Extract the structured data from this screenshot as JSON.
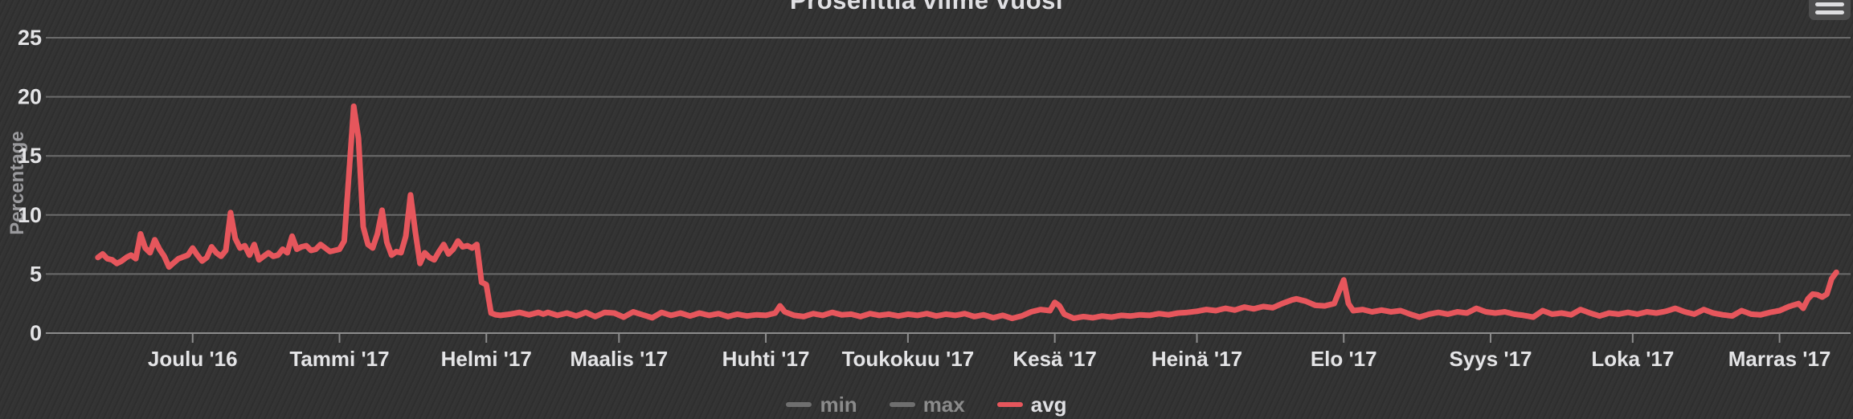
{
  "chart": {
    "title": "Prosenttia viime vuosi",
    "background_color": "#333333",
    "grid_color": "#6b6b6b",
    "axis_line_color": "#8c8c8c",
    "axis_label_color": "#e4e4e6",
    "y_title_color": "#9a9a9d",
    "series_color": "#e6565c",
    "muted_legend_color": "#6f6f6f"
  },
  "menu": {
    "icon": "hamburger-menu-icon"
  },
  "legend": {
    "items": [
      {
        "label": "min",
        "color": "#6f6f6f",
        "active": false
      },
      {
        "label": "max",
        "color": "#6f6f6f",
        "active": false
      },
      {
        "label": "avg",
        "color": "#e6565c",
        "active": true
      }
    ]
  },
  "chart_data": {
    "type": "line",
    "title": "Prosenttia viime vuosi",
    "xlabel": "",
    "ylabel": "Percentage",
    "ylim": [
      0,
      25
    ],
    "yticks": [
      0,
      5,
      10,
      15,
      20,
      25
    ],
    "grid": true,
    "legend_position": "bottom",
    "x_type": "datetime",
    "x_range": [
      "2016-10-31",
      "2017-11-16"
    ],
    "xticks": [
      {
        "date": "2016-12-01",
        "label": "Joulu '16"
      },
      {
        "date": "2017-01-01",
        "label": "Tammi '17"
      },
      {
        "date": "2017-02-01",
        "label": "Helmi '17"
      },
      {
        "date": "2017-03-01",
        "label": "Maalis '17"
      },
      {
        "date": "2017-04-01",
        "label": "Huhti '17"
      },
      {
        "date": "2017-05-01",
        "label": "Toukokuu '17"
      },
      {
        "date": "2017-06-01",
        "label": "Kesä '17"
      },
      {
        "date": "2017-07-01",
        "label": "Heinä '17"
      },
      {
        "date": "2017-08-01",
        "label": "Elo '17"
      },
      {
        "date": "2017-09-01",
        "label": "Syys '17"
      },
      {
        "date": "2017-10-01",
        "label": "Loka '17"
      },
      {
        "date": "2017-11-01",
        "label": "Marras '17"
      }
    ],
    "series": [
      {
        "name": "min",
        "visible": false,
        "points": []
      },
      {
        "name": "max",
        "visible": false,
        "points": []
      },
      {
        "name": "avg",
        "visible": true,
        "points": [
          [
            "2016-11-11",
            6.4
          ],
          [
            "2016-11-12",
            6.7
          ],
          [
            "2016-11-13",
            6.3
          ],
          [
            "2016-11-14",
            6.2
          ],
          [
            "2016-11-15",
            5.9
          ],
          [
            "2016-11-16",
            6.1
          ],
          [
            "2016-11-17",
            6.4
          ],
          [
            "2016-11-18",
            6.6
          ],
          [
            "2016-11-19",
            6.3
          ],
          [
            "2016-11-20",
            8.4
          ],
          [
            "2016-11-21",
            7.2
          ],
          [
            "2016-11-22",
            6.8
          ],
          [
            "2016-11-23",
            7.9
          ],
          [
            "2016-11-24",
            7.1
          ],
          [
            "2016-11-25",
            6.5
          ],
          [
            "2016-11-26",
            5.6
          ],
          [
            "2016-11-28",
            6.3
          ],
          [
            "2016-11-30",
            6.6
          ],
          [
            "2016-12-01",
            7.2
          ],
          [
            "2016-12-02",
            6.6
          ],
          [
            "2016-12-03",
            6.1
          ],
          [
            "2016-12-04",
            6.4
          ],
          [
            "2016-12-05",
            7.3
          ],
          [
            "2016-12-06",
            6.8
          ],
          [
            "2016-12-07",
            6.5
          ],
          [
            "2016-12-08",
            7.0
          ],
          [
            "2016-12-09",
            10.2
          ],
          [
            "2016-12-10",
            8.0
          ],
          [
            "2016-12-11",
            7.2
          ],
          [
            "2016-12-12",
            7.4
          ],
          [
            "2016-12-13",
            6.6
          ],
          [
            "2016-12-14",
            7.5
          ],
          [
            "2016-12-15",
            6.2
          ],
          [
            "2016-12-16",
            6.5
          ],
          [
            "2016-12-17",
            6.8
          ],
          [
            "2016-12-18",
            6.5
          ],
          [
            "2016-12-19",
            6.6
          ],
          [
            "2016-12-20",
            7.1
          ],
          [
            "2016-12-21",
            6.8
          ],
          [
            "2016-12-22",
            8.2
          ],
          [
            "2016-12-23",
            7.1
          ],
          [
            "2016-12-24",
            7.3
          ],
          [
            "2016-12-25",
            7.4
          ],
          [
            "2016-12-26",
            7.0
          ],
          [
            "2016-12-27",
            7.1
          ],
          [
            "2016-12-28",
            7.5
          ],
          [
            "2016-12-29",
            7.2
          ],
          [
            "2016-12-30",
            6.9
          ],
          [
            "2016-12-31",
            7.0
          ],
          [
            "2017-01-01",
            7.1
          ],
          [
            "2017-01-02",
            7.8
          ],
          [
            "2017-01-03",
            13.5
          ],
          [
            "2017-01-04",
            19.2
          ],
          [
            "2017-01-05",
            16.5
          ],
          [
            "2017-01-06",
            9.0
          ],
          [
            "2017-01-07",
            7.5
          ],
          [
            "2017-01-08",
            7.2
          ],
          [
            "2017-01-09",
            8.4
          ],
          [
            "2017-01-10",
            10.4
          ],
          [
            "2017-01-11",
            7.7
          ],
          [
            "2017-01-12",
            6.6
          ],
          [
            "2017-01-13",
            6.9
          ],
          [
            "2017-01-14",
            6.8
          ],
          [
            "2017-01-15",
            8.2
          ],
          [
            "2017-01-16",
            11.7
          ],
          [
            "2017-01-17",
            8.6
          ],
          [
            "2017-01-18",
            5.9
          ],
          [
            "2017-01-19",
            6.8
          ],
          [
            "2017-01-20",
            6.4
          ],
          [
            "2017-01-21",
            6.2
          ],
          [
            "2017-01-22",
            6.9
          ],
          [
            "2017-01-23",
            7.5
          ],
          [
            "2017-01-24",
            6.7
          ],
          [
            "2017-01-25",
            7.1
          ],
          [
            "2017-01-26",
            7.8
          ],
          [
            "2017-01-27",
            7.3
          ],
          [
            "2017-01-28",
            7.4
          ],
          [
            "2017-01-29",
            7.2
          ],
          [
            "2017-01-30",
            7.5
          ],
          [
            "2017-01-31",
            4.3
          ],
          [
            "2017-02-01",
            4.1
          ],
          [
            "2017-02-02",
            1.7
          ],
          [
            "2017-02-03",
            1.55
          ],
          [
            "2017-02-04",
            1.5
          ],
          [
            "2017-02-06",
            1.6
          ],
          [
            "2017-02-08",
            1.75
          ],
          [
            "2017-02-10",
            1.55
          ],
          [
            "2017-02-12",
            1.75
          ],
          [
            "2017-02-13",
            1.6
          ],
          [
            "2017-02-14",
            1.75
          ],
          [
            "2017-02-16",
            1.5
          ],
          [
            "2017-02-18",
            1.7
          ],
          [
            "2017-02-20",
            1.45
          ],
          [
            "2017-02-22",
            1.75
          ],
          [
            "2017-02-24",
            1.4
          ],
          [
            "2017-02-26",
            1.75
          ],
          [
            "2017-02-28",
            1.7
          ],
          [
            "2017-03-02",
            1.35
          ],
          [
            "2017-03-04",
            1.8
          ],
          [
            "2017-03-06",
            1.55
          ],
          [
            "2017-03-08",
            1.3
          ],
          [
            "2017-03-10",
            1.75
          ],
          [
            "2017-03-12",
            1.5
          ],
          [
            "2017-03-14",
            1.7
          ],
          [
            "2017-03-16",
            1.45
          ],
          [
            "2017-03-18",
            1.7
          ],
          [
            "2017-03-20",
            1.5
          ],
          [
            "2017-03-22",
            1.65
          ],
          [
            "2017-03-24",
            1.4
          ],
          [
            "2017-03-26",
            1.6
          ],
          [
            "2017-03-28",
            1.45
          ],
          [
            "2017-03-30",
            1.55
          ],
          [
            "2017-04-01",
            1.5
          ],
          [
            "2017-04-03",
            1.7
          ],
          [
            "2017-04-04",
            2.3
          ],
          [
            "2017-04-05",
            1.8
          ],
          [
            "2017-04-07",
            1.5
          ],
          [
            "2017-04-09",
            1.4
          ],
          [
            "2017-04-11",
            1.65
          ],
          [
            "2017-04-13",
            1.5
          ],
          [
            "2017-04-15",
            1.75
          ],
          [
            "2017-04-17",
            1.55
          ],
          [
            "2017-04-19",
            1.6
          ],
          [
            "2017-04-21",
            1.4
          ],
          [
            "2017-04-23",
            1.65
          ],
          [
            "2017-04-25",
            1.5
          ],
          [
            "2017-04-27",
            1.6
          ],
          [
            "2017-04-29",
            1.45
          ],
          [
            "2017-05-01",
            1.6
          ],
          [
            "2017-05-03",
            1.5
          ],
          [
            "2017-05-05",
            1.65
          ],
          [
            "2017-05-07",
            1.45
          ],
          [
            "2017-05-09",
            1.6
          ],
          [
            "2017-05-11",
            1.5
          ],
          [
            "2017-05-13",
            1.65
          ],
          [
            "2017-05-15",
            1.4
          ],
          [
            "2017-05-17",
            1.55
          ],
          [
            "2017-05-19",
            1.3
          ],
          [
            "2017-05-21",
            1.5
          ],
          [
            "2017-05-23",
            1.25
          ],
          [
            "2017-05-25",
            1.45
          ],
          [
            "2017-05-27",
            1.8
          ],
          [
            "2017-05-29",
            2.0
          ],
          [
            "2017-05-31",
            1.9
          ],
          [
            "2017-06-01",
            2.6
          ],
          [
            "2017-06-02",
            2.3
          ],
          [
            "2017-06-03",
            1.6
          ],
          [
            "2017-06-05",
            1.25
          ],
          [
            "2017-06-07",
            1.4
          ],
          [
            "2017-06-09",
            1.3
          ],
          [
            "2017-06-11",
            1.45
          ],
          [
            "2017-06-13",
            1.35
          ],
          [
            "2017-06-15",
            1.5
          ],
          [
            "2017-06-17",
            1.45
          ],
          [
            "2017-06-19",
            1.55
          ],
          [
            "2017-06-21",
            1.5
          ],
          [
            "2017-06-23",
            1.65
          ],
          [
            "2017-06-25",
            1.55
          ],
          [
            "2017-06-27",
            1.7
          ],
          [
            "2017-06-29",
            1.75
          ],
          [
            "2017-07-01",
            1.85
          ],
          [
            "2017-07-03",
            2.0
          ],
          [
            "2017-07-05",
            1.9
          ],
          [
            "2017-07-07",
            2.1
          ],
          [
            "2017-07-09",
            1.95
          ],
          [
            "2017-07-11",
            2.2
          ],
          [
            "2017-07-13",
            2.05
          ],
          [
            "2017-07-15",
            2.25
          ],
          [
            "2017-07-17",
            2.15
          ],
          [
            "2017-07-19",
            2.5
          ],
          [
            "2017-07-21",
            2.8
          ],
          [
            "2017-07-22",
            2.9
          ],
          [
            "2017-07-24",
            2.7
          ],
          [
            "2017-07-26",
            2.35
          ],
          [
            "2017-07-28",
            2.3
          ],
          [
            "2017-07-30",
            2.5
          ],
          [
            "2017-08-01",
            4.5
          ],
          [
            "2017-08-02",
            2.5
          ],
          [
            "2017-08-03",
            1.9
          ],
          [
            "2017-08-05",
            2.0
          ],
          [
            "2017-08-07",
            1.8
          ],
          [
            "2017-08-09",
            1.95
          ],
          [
            "2017-08-11",
            1.8
          ],
          [
            "2017-08-13",
            1.9
          ],
          [
            "2017-08-15",
            1.6
          ],
          [
            "2017-08-17",
            1.35
          ],
          [
            "2017-08-19",
            1.6
          ],
          [
            "2017-08-21",
            1.75
          ],
          [
            "2017-08-23",
            1.6
          ],
          [
            "2017-08-25",
            1.8
          ],
          [
            "2017-08-27",
            1.7
          ],
          [
            "2017-08-29",
            2.1
          ],
          [
            "2017-08-31",
            1.8
          ],
          [
            "2017-09-02",
            1.7
          ],
          [
            "2017-09-04",
            1.8
          ],
          [
            "2017-09-06",
            1.6
          ],
          [
            "2017-09-08",
            1.5
          ],
          [
            "2017-09-10",
            1.35
          ],
          [
            "2017-09-12",
            1.9
          ],
          [
            "2017-09-14",
            1.6
          ],
          [
            "2017-09-16",
            1.7
          ],
          [
            "2017-09-18",
            1.55
          ],
          [
            "2017-09-20",
            2.0
          ],
          [
            "2017-09-22",
            1.7
          ],
          [
            "2017-09-24",
            1.45
          ],
          [
            "2017-09-26",
            1.7
          ],
          [
            "2017-09-28",
            1.6
          ],
          [
            "2017-09-30",
            1.75
          ],
          [
            "2017-10-02",
            1.6
          ],
          [
            "2017-10-04",
            1.8
          ],
          [
            "2017-10-06",
            1.7
          ],
          [
            "2017-10-08",
            1.85
          ],
          [
            "2017-10-10",
            2.1
          ],
          [
            "2017-10-12",
            1.8
          ],
          [
            "2017-10-14",
            1.6
          ],
          [
            "2017-10-16",
            2.0
          ],
          [
            "2017-10-18",
            1.7
          ],
          [
            "2017-10-20",
            1.55
          ],
          [
            "2017-10-22",
            1.45
          ],
          [
            "2017-10-24",
            1.9
          ],
          [
            "2017-10-26",
            1.6
          ],
          [
            "2017-10-28",
            1.55
          ],
          [
            "2017-10-30",
            1.75
          ],
          [
            "2017-11-01",
            1.9
          ],
          [
            "2017-11-03",
            2.25
          ],
          [
            "2017-11-05",
            2.5
          ],
          [
            "2017-11-06",
            2.1
          ],
          [
            "2017-11-07",
            2.9
          ],
          [
            "2017-11-08",
            3.3
          ],
          [
            "2017-11-09",
            3.25
          ],
          [
            "2017-11-10",
            3.05
          ],
          [
            "2017-11-11",
            3.3
          ],
          [
            "2017-11-12",
            4.6
          ],
          [
            "2017-11-13",
            5.15
          ]
        ]
      }
    ]
  }
}
